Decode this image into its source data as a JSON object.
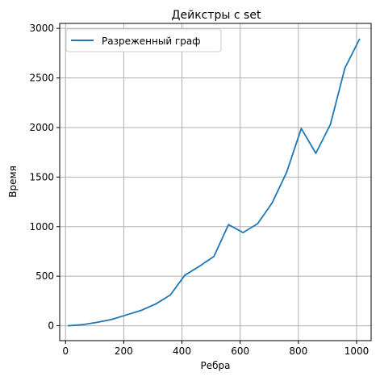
{
  "chart_data": {
    "type": "line",
    "title": "Дейкстры с set",
    "xlabel": "Ребра",
    "ylabel": "Время",
    "xlim": [
      -20,
      1050
    ],
    "ylim": [
      -150,
      3050
    ],
    "xticks": [
      0,
      200,
      400,
      600,
      800,
      1000
    ],
    "yticks": [
      0,
      500,
      1000,
      1500,
      2000,
      2500,
      3000
    ],
    "xtick_labels": [
      "0",
      "200",
      "400",
      "600",
      "800",
      "1000"
    ],
    "ytick_labels": [
      "0",
      "500",
      "1000",
      "1500",
      "2000",
      "2500",
      "3000"
    ],
    "grid": true,
    "legend_position": "upper-left",
    "series": [
      {
        "name": "Разреженный граф",
        "color": "#1f77b4",
        "x": [
          10,
          60,
          110,
          160,
          210,
          260,
          310,
          360,
          410,
          460,
          510,
          560,
          610,
          660,
          710,
          760,
          810,
          860,
          910,
          960,
          1010
        ],
        "y": [
          0,
          12,
          35,
          65,
          110,
          155,
          220,
          310,
          510,
          600,
          700,
          1020,
          940,
          1030,
          1240,
          1550,
          1990,
          1740,
          2030,
          2600,
          2890
        ]
      }
    ]
  }
}
